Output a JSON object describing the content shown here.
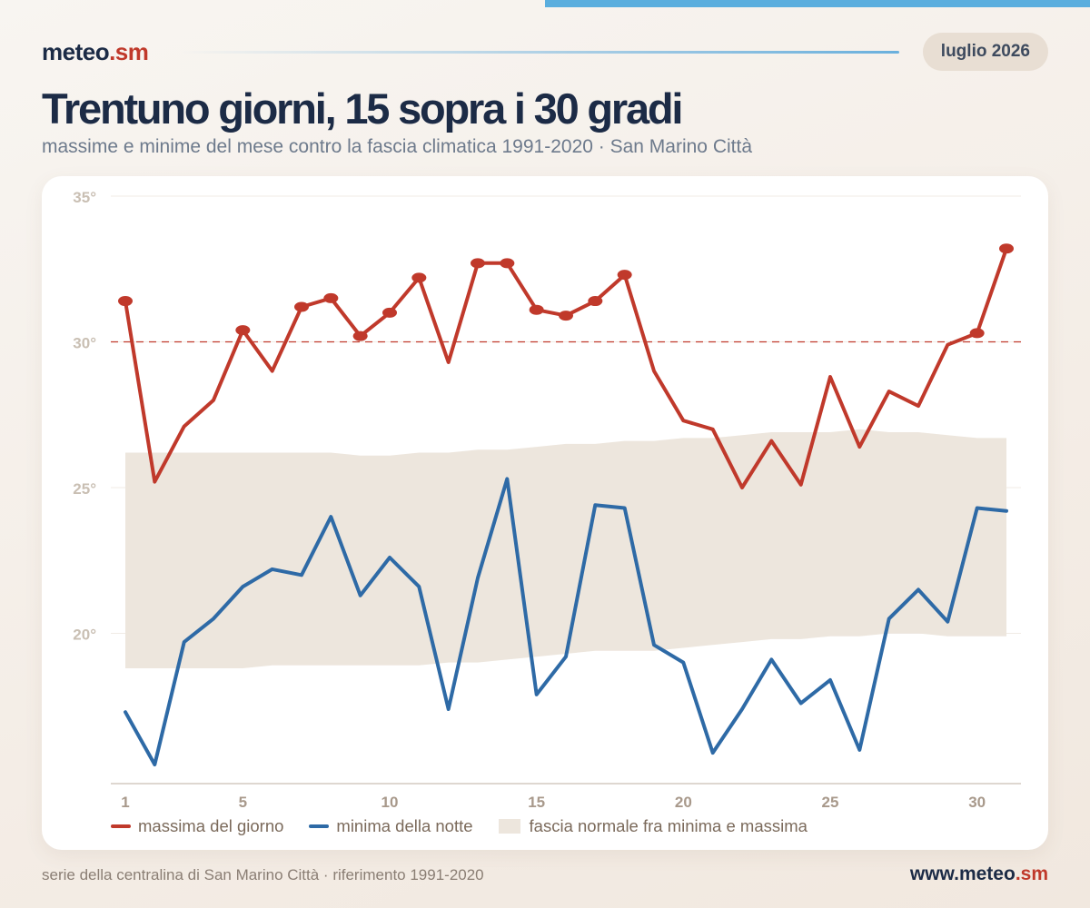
{
  "colors": {
    "max": "#c0392b",
    "min": "#2e6aa6",
    "band": "#ede6dd",
    "threshold": "#c0392b",
    "axis_text": "#c9bfb3",
    "accent_bar": "#5aaede"
  },
  "header": {
    "brand_main": "meteo",
    "brand_accent": ".sm",
    "date": "luglio 2026"
  },
  "title": "Trentuno giorni, 15 sopra i 30 gradi",
  "subtitle": "massime e minime del mese contro la fascia climatica 1991‑2020 · San Marino Città",
  "legend": {
    "max": "massima del giorno",
    "min": "minima della notte",
    "band": "fascia normale fra minima e massima"
  },
  "footer": {
    "note": "serie della centralina di San Marino Città · riferimento 1991‑2020",
    "brand_prefix": "www.",
    "brand_main": "meteo",
    "brand_accent": ".sm"
  },
  "chart_data": {
    "type": "line",
    "x": [
      1,
      2,
      3,
      4,
      5,
      6,
      7,
      8,
      9,
      10,
      11,
      12,
      13,
      14,
      15,
      16,
      17,
      18,
      19,
      20,
      21,
      22,
      23,
      24,
      25,
      26,
      27,
      28,
      29,
      30,
      31
    ],
    "x_ticks": [
      1,
      5,
      10,
      15,
      20,
      25,
      30
    ],
    "y_ticks": [
      20,
      25,
      30,
      35
    ],
    "y_tick_suffix": "°",
    "ylim": [
      15,
      35
    ],
    "threshold": 30,
    "series": [
      {
        "name": "massima del giorno",
        "values": [
          31.4,
          25.2,
          27.1,
          28.0,
          30.4,
          29.0,
          31.2,
          31.5,
          30.2,
          31.0,
          32.2,
          29.3,
          32.7,
          32.7,
          31.1,
          30.9,
          31.4,
          32.3,
          29.0,
          27.3,
          27.0,
          25.0,
          26.6,
          25.1,
          28.8,
          26.4,
          28.3,
          27.8,
          29.9,
          30.3,
          33.2
        ]
      },
      {
        "name": "minima della notte",
        "values": [
          17.3,
          15.5,
          19.7,
          20.5,
          21.6,
          22.2,
          22.0,
          24.0,
          21.3,
          22.6,
          21.6,
          17.4,
          21.9,
          25.3,
          17.9,
          19.2,
          24.4,
          24.3,
          19.6,
          19.0,
          15.9,
          17.4,
          19.1,
          17.6,
          18.4,
          16.0,
          20.5,
          21.5,
          20.4,
          24.3,
          24.2
        ]
      }
    ],
    "normal_band": {
      "name": "fascia normale fra minima e massima",
      "lower": [
        18.8,
        18.8,
        18.8,
        18.8,
        18.8,
        18.9,
        18.9,
        18.9,
        18.9,
        18.9,
        18.9,
        19.0,
        19.0,
        19.1,
        19.2,
        19.3,
        19.4,
        19.4,
        19.4,
        19.5,
        19.6,
        19.7,
        19.8,
        19.8,
        19.9,
        19.9,
        20.0,
        20.0,
        19.9,
        19.9,
        19.9
      ],
      "upper": [
        26.2,
        26.2,
        26.2,
        26.2,
        26.2,
        26.2,
        26.2,
        26.2,
        26.1,
        26.1,
        26.2,
        26.2,
        26.3,
        26.3,
        26.4,
        26.5,
        26.5,
        26.6,
        26.6,
        26.7,
        26.7,
        26.8,
        26.9,
        26.9,
        26.9,
        27.0,
        26.9,
        26.9,
        26.8,
        26.7,
        26.7
      ]
    },
    "grid": true,
    "legend_position": "bottom-left"
  }
}
